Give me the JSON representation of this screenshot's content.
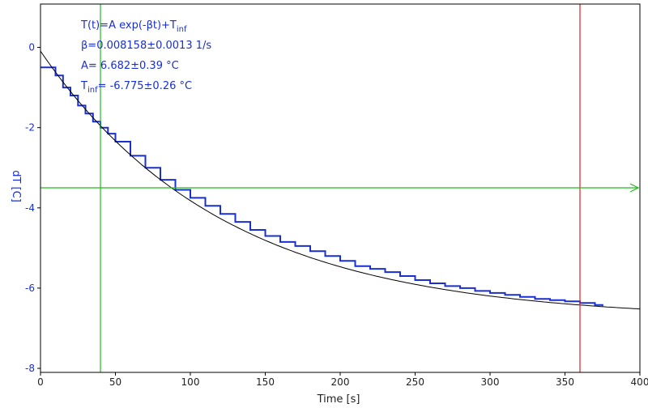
{
  "chart_data": {
    "type": "line",
    "xlabel": "Time [s]",
    "ylabel": "dT [C]",
    "xlim": [
      0,
      400
    ],
    "ylim": [
      -8.1,
      1.08
    ],
    "xticks": [
      0,
      50,
      100,
      150,
      200,
      250,
      300,
      350,
      400
    ],
    "yticks": [
      0,
      -2,
      -4,
      -6,
      -8
    ],
    "xtick_labels": [
      "0",
      "50",
      "100",
      "150",
      "200",
      "250",
      "300",
      "350",
      "400"
    ],
    "ytick_labels": [
      "0",
      "-2",
      "-4",
      "-6",
      "-8"
    ],
    "grid": false,
    "annotations": {
      "model": {
        "prefix": "T(t)=A exp(-βt)+T",
        "sub": "inf"
      },
      "beta": "β=0.008158±0.0013 1/s",
      "amplitude": "A= 6.682±0.39 °C",
      "tinf": {
        "prefix": "T",
        "sub": "inf",
        "suffix": "= -6.775±0.26 °C"
      }
    },
    "fit": {
      "A": 6.682,
      "beta": 0.008158,
      "T_inf": -6.775,
      "x_range": [
        0,
        400
      ]
    },
    "cursors": {
      "vertical_green_x": 40,
      "vertical_red_x": 360,
      "horizontal_green_y": -3.5
    },
    "series": [
      {
        "x": [
          0,
          5,
          10,
          15,
          20,
          25,
          30,
          35,
          40,
          45,
          50,
          60,
          70,
          80,
          90,
          100,
          110,
          120,
          130,
          140,
          150,
          160,
          170,
          180,
          190,
          200,
          210,
          220,
          230,
          240,
          250,
          260,
          270,
          280,
          290,
          300,
          310,
          320,
          330,
          340,
          350,
          360,
          370,
          375
        ],
        "y": [
          -0.5,
          -0.5,
          -0.7,
          -1.0,
          -1.2,
          -1.45,
          -1.65,
          -1.85,
          -2.0,
          -2.15,
          -2.35,
          -2.7,
          -3.0,
          -3.3,
          -3.55,
          -3.75,
          -3.95,
          -4.15,
          -4.35,
          -4.55,
          -4.7,
          -4.85,
          -4.95,
          -5.08,
          -5.2,
          -5.32,
          -5.45,
          -5.52,
          -5.6,
          -5.7,
          -5.8,
          -5.88,
          -5.95,
          -6.0,
          -6.07,
          -6.12,
          -6.17,
          -6.22,
          -6.27,
          -6.3,
          -6.33,
          -6.37,
          -6.42,
          -6.45
        ],
        "color": "#1a2fd0"
      }
    ],
    "colors": {
      "data": "#1a2fd0",
      "fit": "#000000",
      "cursor_green": "#22bb22",
      "cursor_red": "#dd2222",
      "axis_text": "#1a2fd0"
    }
  }
}
